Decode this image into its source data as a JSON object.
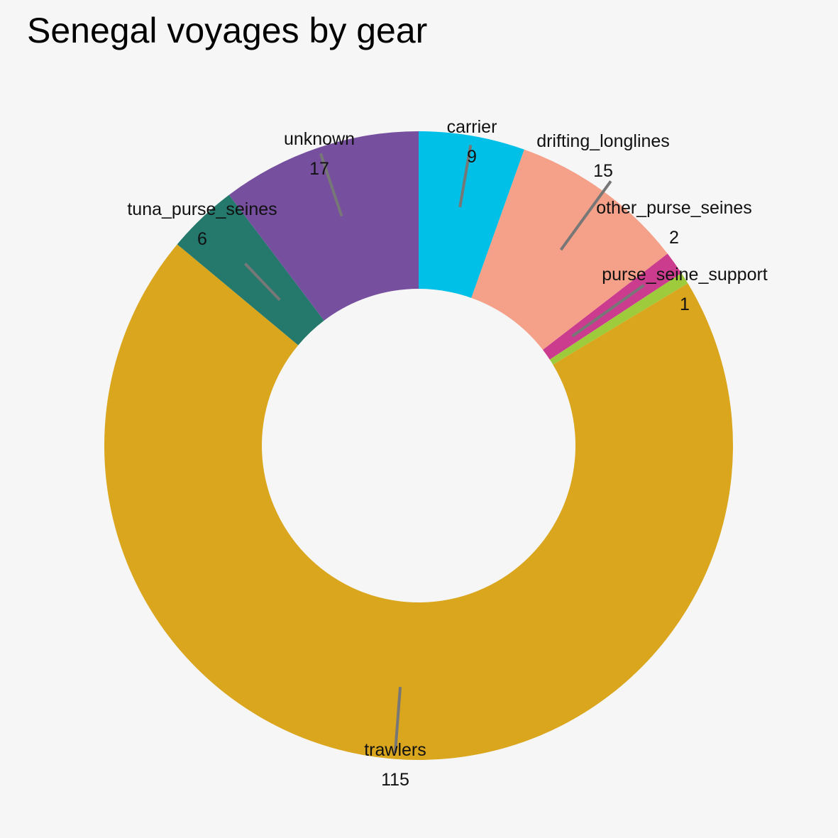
{
  "chart_data": {
    "type": "pie",
    "variant": "donut",
    "title": "Senegal voyages by gear",
    "slices": [
      {
        "name": "carrier",
        "value": 9,
        "color": "#00c0e8"
      },
      {
        "name": "drifting_longlines",
        "value": 15,
        "color": "#f5a088"
      },
      {
        "name": "other_purse_seines",
        "value": 2,
        "color": "#cc3c8e"
      },
      {
        "name": "purse_seine_support",
        "value": 1,
        "color": "#9ecb3c"
      },
      {
        "name": "trawlers",
        "value": 115,
        "color": "#daa61e"
      },
      {
        "name": "tuna_purse_seines",
        "value": 6,
        "color": "#24786c"
      },
      {
        "name": "unknown",
        "value": 17,
        "color": "#774f9f"
      }
    ]
  }
}
